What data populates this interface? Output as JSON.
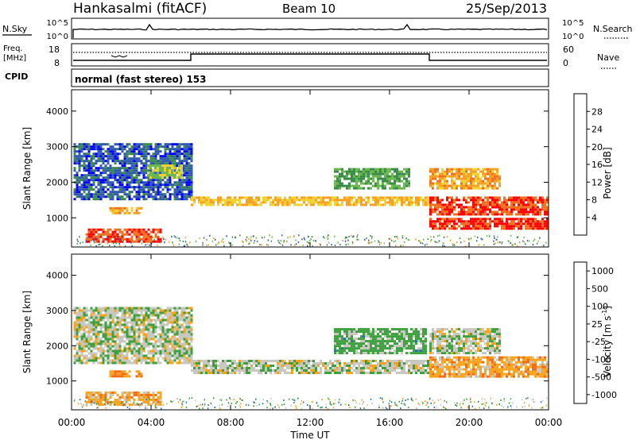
{
  "header": {
    "station": "Hankasalmi (fitACF)",
    "beam": "Beam 10",
    "date": "25/Sep/2013"
  },
  "noise_panel": {
    "left_label": "N.Sky",
    "right_label": "N.Search",
    "left_ticks": [
      "10^5",
      "10^0"
    ],
    "right_ticks": [
      "10^5",
      "10^0"
    ]
  },
  "freq_panel": {
    "left_label_line1": "Freq.",
    "left_label_line2": "[MHz]",
    "right_label": "Nave",
    "left_ticks": [
      "18",
      "8"
    ],
    "right_ticks": [
      "60",
      "0"
    ]
  },
  "cpid": {
    "label": "CPID",
    "text": "normal (fast stereo) 153"
  },
  "x_axis": {
    "label": "Time UT",
    "ticks": [
      "00:00",
      "04:00",
      "08:00",
      "12:00",
      "16:00",
      "20:00",
      "00:00"
    ]
  },
  "colors": {
    "power": [
      "#0000ff",
      "#2f58b0",
      "#3a8a4a",
      "#6ab84e",
      "#f0d230",
      "#f5a020",
      "#f07020",
      "#ff0000"
    ],
    "velocity": [
      "#ff0000",
      "#f26a1a",
      "#f7a31c",
      "#c8c8c0",
      "#c8c8c0",
      "#3fa040",
      "#2a70a0",
      "#2a55c0"
    ],
    "ground_scatter": "#c8c8c0"
  },
  "chart_data": [
    {
      "type": "heatmap",
      "title": "Power",
      "ylabel": "Slant Range [km]",
      "xlabel": "",
      "x_range_ut_hours": [
        0,
        24
      ],
      "ylim": [
        180,
        4600
      ],
      "yticks": [
        1000,
        2000,
        3000,
        4000
      ],
      "colorbar": {
        "label": "Power [dB]",
        "ticks": [
          "4",
          "8",
          "12",
          "16",
          "20",
          "24",
          "28"
        ],
        "range": [
          0,
          30
        ]
      },
      "regions": [
        {
          "desc": "low-range band",
          "t": [
            0.7,
            4.5
          ],
          "range_km": [
            350,
            700
          ],
          "power_db": 28
        },
        {
          "desc": "early mid band",
          "t": [
            1.9,
            3.5
          ],
          "range_km": [
            1100,
            1300
          ],
          "power_db": 22
        },
        {
          "desc": "descending arc",
          "t": [
            0.1,
            6.0
          ],
          "range_km": [
            1500,
            3100
          ],
          "power_db": 6
        },
        {
          "desc": "main band",
          "t": [
            6.0,
            17.9
          ],
          "range_km": [
            1350,
            1600
          ],
          "power_db": 20
        },
        {
          "desc": "far patch",
          "t": [
            3.8,
            5.6
          ],
          "range_km": [
            2100,
            2500
          ],
          "power_db": 16
        },
        {
          "desc": "upper band",
          "t": [
            13.2,
            17.0
          ],
          "range_km": [
            1800,
            2400
          ],
          "power_db": 12
        },
        {
          "desc": "late strong band",
          "t": [
            18.0,
            24.0
          ],
          "range_km": [
            700,
            1000
          ],
          "power_db": 29
        },
        {
          "desc": "late high band",
          "t": [
            18.0,
            24.0
          ],
          "range_km": [
            1100,
            1600
          ],
          "power_db": 28
        },
        {
          "desc": "late far band",
          "t": [
            18.0,
            21.5
          ],
          "range_km": [
            1800,
            2400
          ],
          "power_db": 22
        }
      ]
    },
    {
      "type": "heatmap",
      "title": "Velocity",
      "ylabel": "Slant Range [km]",
      "xlabel": "Time UT",
      "x_range_ut_hours": [
        0,
        24
      ],
      "ylim": [
        180,
        4600
      ],
      "yticks": [
        1000,
        2000,
        3000,
        4000
      ],
      "colorbar": {
        "label_main": "Velocity",
        "label_unit": "[m s",
        "label_exp": "-1",
        "label_close": "]",
        "ticks": [
          "1000",
          "500",
          "100",
          "25",
          "-25",
          "-100",
          "-500",
          "-1000"
        ]
      },
      "regions": [
        {
          "desc": "ground scatter arc",
          "t": [
            0.1,
            6.0
          ],
          "range_km": [
            1500,
            3100
          ],
          "velocity_ms": 0
        },
        {
          "desc": "ground scatter band",
          "t": [
            6.0,
            17.9
          ],
          "range_km": [
            1200,
            1600
          ],
          "velocity_ms": 0
        },
        {
          "desc": "low-range band",
          "t": [
            0.7,
            4.5
          ],
          "range_km": [
            350,
            700
          ],
          "velocity_ms": -200
        },
        {
          "desc": "early mid band",
          "t": [
            1.9,
            3.5
          ],
          "range_km": [
            1100,
            1300
          ],
          "velocity_ms": -300
        },
        {
          "desc": "upper band",
          "t": [
            13.2,
            17.8
          ],
          "range_km": [
            1800,
            2500
          ],
          "velocity_ms": 150
        },
        {
          "desc": "late band",
          "t": [
            18.0,
            24.0
          ],
          "range_km": [
            1100,
            1700
          ],
          "velocity_ms": -200
        },
        {
          "desc": "late far band",
          "t": [
            18.0,
            21.5
          ],
          "range_km": [
            1800,
            2500
          ],
          "velocity_ms": 0
        }
      ]
    }
  ]
}
